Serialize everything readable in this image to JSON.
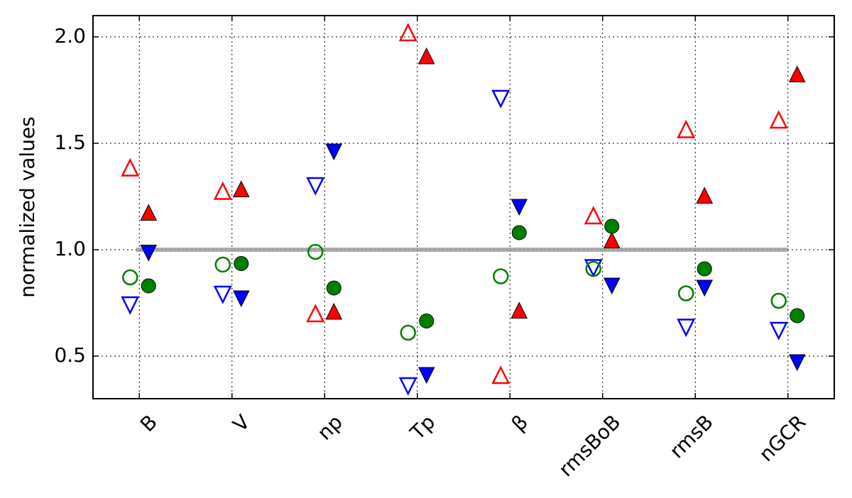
{
  "chart_data": {
    "type": "scatter",
    "ylabel": "normalized values",
    "categories": [
      "B",
      "V",
      "np",
      "Tp",
      "β",
      "rmsBoB",
      "rmsB",
      "nGCR"
    ],
    "ylim": [
      0.3,
      2.1
    ],
    "yticks": [
      0.5,
      {
        "value": 1,
        "label": "1.0"
      },
      1.5,
      {
        "value": 2,
        "label": "2.0"
      }
    ],
    "grid": true,
    "hline": 1,
    "series": [
      {
        "color": "#ff0000",
        "marker": "triangle-up",
        "filled": false,
        "values": [
          1.385,
          1.275,
          0.7,
          2.02,
          0.41,
          1.16,
          1.565,
          1.61
        ]
      },
      {
        "color": "#ff0000",
        "marker": "triangle-up",
        "filled": true,
        "values": [
          1.175,
          1.285,
          0.71,
          1.91,
          0.715,
          1.045,
          1.255,
          1.825
        ]
      },
      {
        "color": "#0000ff",
        "marker": "triangle-down",
        "filled": false,
        "values": [
          0.74,
          0.79,
          1.3,
          0.36,
          1.71,
          0.915,
          0.635,
          0.62
        ]
      },
      {
        "color": "#0000ff",
        "marker": "triangle-down",
        "filled": true,
        "values": [
          0.985,
          0.77,
          1.46,
          0.41,
          1.2,
          0.83,
          0.82,
          0.47
        ]
      },
      {
        "color": "#008000",
        "marker": "circle",
        "filled": false,
        "values": [
          0.87,
          0.93,
          0.99,
          0.61,
          0.875,
          0.91,
          0.795,
          0.76
        ]
      },
      {
        "color": "#008000",
        "marker": "circle",
        "filled": true,
        "values": [
          0.83,
          0.935,
          0.82,
          0.665,
          1.08,
          1.11,
          0.91,
          0.69
        ]
      }
    ]
  }
}
